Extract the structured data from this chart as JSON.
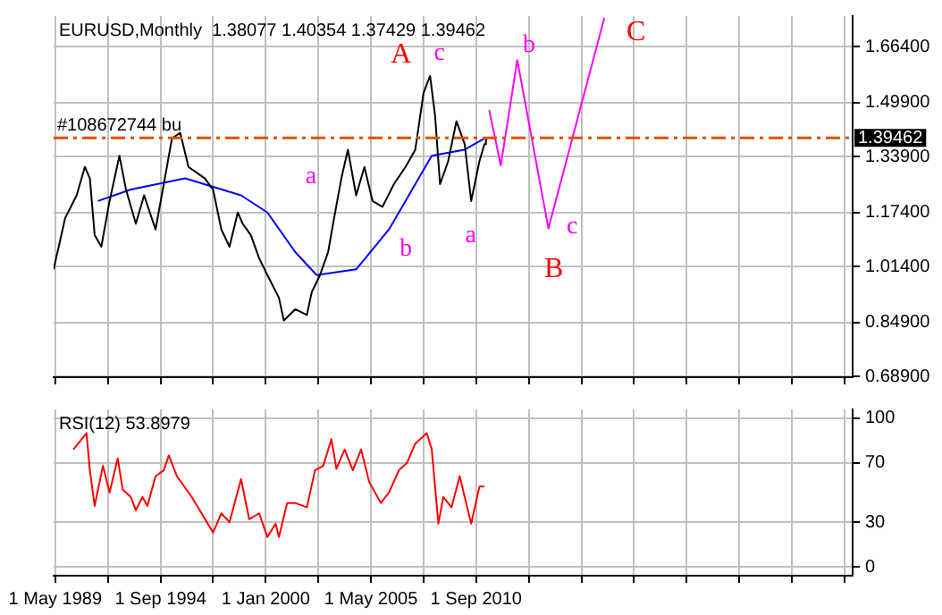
{
  "chart_data": [
    {
      "type": "line",
      "title": "EURUSD,Monthly  1.38077 1.40354 1.37429 1.39462",
      "xlim": [
        "1989-04",
        "2029-10"
      ],
      "xticks": [
        {
          "value": "1989-05-01",
          "label": null
        },
        {
          "value": "1992-01-01",
          "label": null
        },
        {
          "value": "1994-09-01",
          "label": null
        },
        {
          "value": "1997-05-01",
          "label": null
        },
        {
          "value": "2000-01-01",
          "label": null
        },
        {
          "value": "2002-09-01",
          "label": null
        },
        {
          "value": "2005-05-01",
          "label": null
        },
        {
          "value": "2008-01-01",
          "label": null
        },
        {
          "value": "2010-09-01",
          "label": null
        },
        {
          "value": "2013-05-01",
          "label": null
        },
        {
          "value": "2016-01-01",
          "label": null
        },
        {
          "value": "2018-09-01",
          "label": null
        },
        {
          "value": "2021-05-01",
          "label": null
        },
        {
          "value": "2024-01-01",
          "label": null
        },
        {
          "value": "2026-09-01",
          "label": null
        },
        {
          "value": "2029-05-01",
          "label": null
        }
      ],
      "ylim": [
        0.687,
        1.755
      ],
      "yticks": [
        {
          "value": 0.689,
          "label": "0.68900"
        },
        {
          "value": 0.849,
          "label": "0.84900"
        },
        {
          "value": 1.014,
          "label": "1.01400"
        },
        {
          "value": 1.174,
          "label": "1.17400"
        },
        {
          "value": 1.339,
          "label": "1.33900"
        },
        {
          "value": 1.499,
          "label": "1.49900"
        },
        {
          "value": 1.664,
          "label": "1.66400"
        }
      ],
      "grid": true,
      "tick_labels": "y",
      "series": [
        {
          "color": "#000000",
          "x": [
            "1989-04",
            "1989-11",
            "1990-06",
            "1990-11",
            "1991-02",
            "1991-05",
            "1991-09",
            "1992-02",
            "1992-08",
            "1992-12",
            "1993-06",
            "1993-11",
            "1994-06",
            "1994-11",
            "1995-04",
            "1995-09",
            "1996-02",
            "1996-07",
            "1996-12",
            "1997-05",
            "1997-10",
            "1998-03",
            "1998-08",
            "1998-11",
            "1999-04",
            "1999-09",
            "2000-02",
            "2000-09",
            "2000-12",
            "2001-07",
            "2002-02",
            "2002-05",
            "2002-10",
            "2003-03",
            "2003-06",
            "2003-11",
            "2004-03",
            "2004-08",
            "2005-01",
            "2005-06",
            "2005-12",
            "2006-07",
            "2007-02",
            "2007-08",
            "2008-01",
            "2008-05",
            "2008-08",
            "2008-11",
            "2009-04",
            "2009-09",
            "2010-02",
            "2010-06",
            "2010-11",
            "2011-02",
            "2011-03"
          ],
          "values": [
            1.006,
            1.158,
            1.225,
            1.309,
            1.275,
            1.107,
            1.073,
            1.208,
            1.342,
            1.242,
            1.141,
            1.225,
            1.124,
            1.258,
            1.393,
            1.41,
            1.309,
            1.292,
            1.275,
            1.242,
            1.124,
            1.073,
            1.174,
            1.141,
            1.107,
            1.039,
            0.989,
            0.922,
            0.855,
            0.888,
            0.871,
            0.938,
            0.989,
            1.057,
            1.141,
            1.275,
            1.36,
            1.225,
            1.309,
            1.208,
            1.191,
            1.258,
            1.309,
            1.36,
            1.528,
            1.578,
            1.461,
            1.258,
            1.326,
            1.444,
            1.376,
            1.208,
            1.326,
            1.376,
            1.395
          ]
        },
        {
          "color": "#0000ff",
          "x": [
            "1991-07",
            "1993-03",
            "1995-12",
            "1998-10",
            "2000-02",
            "2001-07",
            "2002-08",
            "2004-08",
            "2006-04",
            "2008-06",
            "2010-02",
            "2011-02"
          ],
          "values": [
            1.208,
            1.242,
            1.275,
            1.225,
            1.174,
            1.057,
            0.989,
            1.006,
            1.124,
            1.342,
            1.36,
            1.393
          ]
        },
        {
          "color": "#ff00ff",
          "x": [
            "2011-05",
            "2011-12",
            "2012-10",
            "2014-05",
            "2017-03"
          ],
          "values": [
            1.477,
            1.313,
            1.625,
            1.127,
            1.75
          ]
        }
      ],
      "ref_lines": [
        {
          "axis": "y",
          "value": 1.39462,
          "label": "#108672744 bu",
          "color": "#e05000",
          "line_style": "dashed"
        }
      ],
      "annotations": [
        "A",
        "c",
        "b",
        "C",
        "a",
        "b",
        "a",
        "c",
        "B",
        "1.39462"
      ]
    },
    {
      "type": "line",
      "title": "RSI(12) 53.8979",
      "xlim": [
        "1989-04",
        "2029-10"
      ],
      "xticks": [
        {
          "value": "1989-05-01",
          "label": "1 May 1989"
        },
        {
          "value": "1992-01-01",
          "label": null
        },
        {
          "value": "1994-09-01",
          "label": "1 Sep 1994"
        },
        {
          "value": "1997-05-01",
          "label": null
        },
        {
          "value": "2000-01-01",
          "label": "1 Jan 2000"
        },
        {
          "value": "2002-09-01",
          "label": null
        },
        {
          "value": "2005-05-01",
          "label": "1 May 2005"
        },
        {
          "value": "2008-01-01",
          "label": null
        },
        {
          "value": "2010-09-01",
          "label": "1 Sep 2010"
        },
        {
          "value": "2013-05-01",
          "label": null
        },
        {
          "value": "2016-01-01",
          "label": null
        },
        {
          "value": "2018-09-01",
          "label": null
        },
        {
          "value": "2021-05-01",
          "label": null
        },
        {
          "value": "2024-01-01",
          "label": null
        },
        {
          "value": "2026-09-01",
          "label": null
        },
        {
          "value": "2029-05-01",
          "label": null
        }
      ],
      "ylim": [
        -6,
        106
      ],
      "yticks": [
        0,
        30,
        70,
        100
      ],
      "grid": true,
      "series": [
        {
          "color": "#ff0000",
          "x": [
            "1990-04",
            "1990-12",
            "1991-02",
            "1991-05",
            "1991-10",
            "1992-02",
            "1992-07",
            "1992-10",
            "1993-03",
            "1993-06",
            "1993-10",
            "1994-01",
            "1994-06",
            "1994-11",
            "1995-02",
            "1995-07",
            "1996-04",
            "1996-10",
            "1997-05",
            "1997-10",
            "1998-03",
            "1998-10",
            "1999-03",
            "1999-09",
            "2000-02",
            "2000-07",
            "2000-09",
            "2001-02",
            "2001-07",
            "2002-02",
            "2002-07",
            "2002-12",
            "2003-05",
            "2003-08",
            "2004-01",
            "2004-06",
            "2004-11",
            "2005-04",
            "2005-11",
            "2006-04",
            "2006-10",
            "2007-03",
            "2007-08",
            "2008-03",
            "2008-06",
            "2008-10",
            "2009-01",
            "2009-06",
            "2009-11",
            "2010-02",
            "2010-06",
            "2010-11",
            "2011-02"
          ],
          "values": [
            79,
            90,
            65,
            41,
            68,
            50,
            73,
            52,
            47,
            38,
            47,
            41,
            61,
            65,
            75,
            61,
            47,
            36,
            23,
            36,
            30,
            59,
            32,
            36,
            20,
            29,
            20,
            43,
            43,
            40,
            65,
            68,
            86,
            66,
            79,
            65,
            79,
            57,
            43,
            50,
            65,
            70,
            83,
            90,
            79,
            29,
            47,
            40,
            61,
            47,
            29,
            54,
            54
          ]
        }
      ]
    }
  ]
}
